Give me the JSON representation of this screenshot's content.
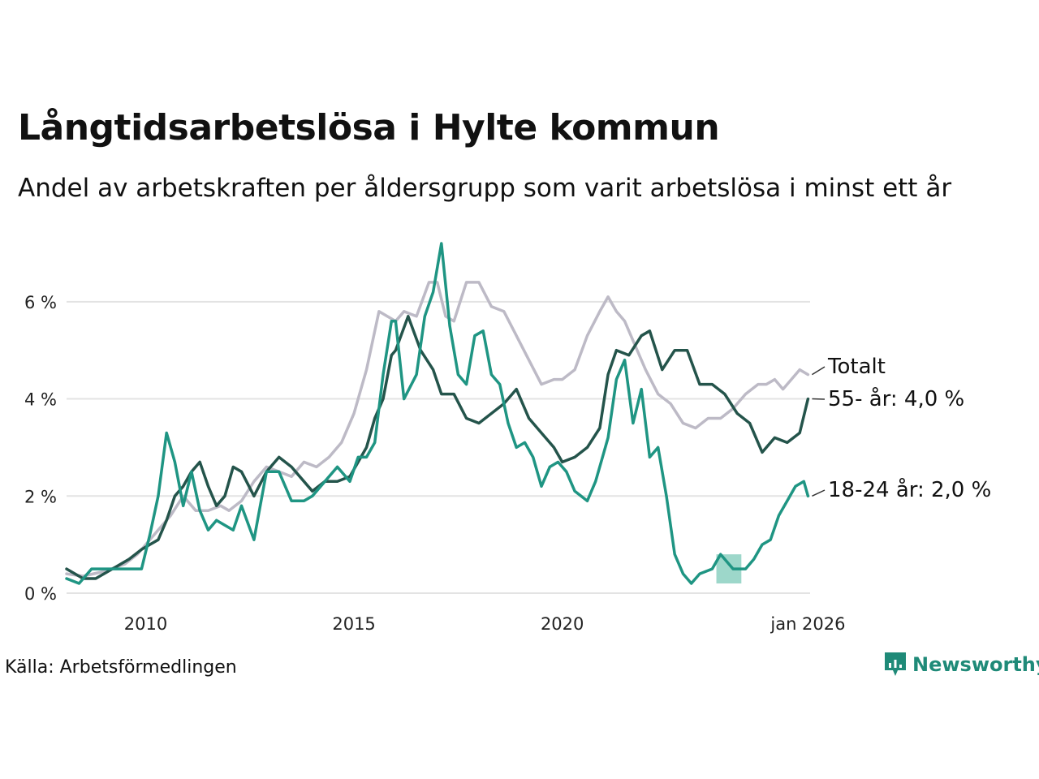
{
  "title": "Långtidsarbetslösa i Hylte kommun",
  "subtitle": "Andel av arbetskraften per åldersgrupp som varit arbetslösa i minst ett år",
  "source": "Källa: Arbetsförmedlingen",
  "brand": {
    "name": "Newsworthy",
    "icon": "newsworthy-logo-icon",
    "color": "#1f8a78"
  },
  "chart_data": {
    "type": "line",
    "title": "Långtidsarbetslösa i Hylte kommun",
    "xlabel": "",
    "ylabel": "",
    "xlim": [
      2008.1,
      2025.95
    ],
    "ylim": [
      0,
      7.2
    ],
    "yticks": [
      0,
      2,
      4,
      6
    ],
    "ytick_labels": [
      "0 %",
      "2 %",
      "4 %",
      "6 %"
    ],
    "xticks": [
      2010,
      2015,
      2020,
      2025.9
    ],
    "xtick_labels": [
      "2010",
      "2015",
      "2020",
      "jan 2026"
    ],
    "grid": "horizontal",
    "series": [
      {
        "name": "Totalt",
        "label": "Totalt",
        "color": "#bdbac6",
        "x": [
          2008.1,
          2008.5,
          2009.0,
          2009.5,
          2009.8,
          2010.0,
          2010.3,
          2010.6,
          2010.9,
          2011.2,
          2011.5,
          2011.8,
          2012.0,
          2012.3,
          2012.6,
          2012.9,
          2013.2,
          2013.5,
          2013.8,
          2014.1,
          2014.4,
          2014.7,
          2015.0,
          2015.3,
          2015.6,
          2015.8,
          2016.0,
          2016.2,
          2016.5,
          2016.8,
          2017.0,
          2017.2,
          2017.4,
          2017.7,
          2018.0,
          2018.3,
          2018.6,
          2018.9,
          2019.2,
          2019.5,
          2019.8,
          2020.0,
          2020.3,
          2020.6,
          2020.9,
          2021.1,
          2021.3,
          2021.5,
          2021.8,
          2022.0,
          2022.3,
          2022.6,
          2022.9,
          2023.2,
          2023.5,
          2023.8,
          2024.1,
          2024.4,
          2024.7,
          2024.9,
          2025.1,
          2025.3,
          2025.5,
          2025.7,
          2025.9
        ],
        "values": [
          0.4,
          0.35,
          0.45,
          0.6,
          0.8,
          1.0,
          1.3,
          1.6,
          2.0,
          1.7,
          1.7,
          1.8,
          1.7,
          1.9,
          2.3,
          2.6,
          2.5,
          2.4,
          2.7,
          2.6,
          2.8,
          3.1,
          3.7,
          4.6,
          5.8,
          5.7,
          5.6,
          5.8,
          5.7,
          6.4,
          6.4,
          5.7,
          5.6,
          6.4,
          6.4,
          5.9,
          5.8,
          5.3,
          4.8,
          4.3,
          4.4,
          4.4,
          4.6,
          5.3,
          5.8,
          6.1,
          5.8,
          5.6,
          5.0,
          4.6,
          4.1,
          3.9,
          3.5,
          3.4,
          3.6,
          3.6,
          3.8,
          4.1,
          4.3,
          4.3,
          4.4,
          4.2,
          4.4,
          4.6,
          4.5
        ]
      },
      {
        "name": "55- år",
        "label": "55- år: 4,0 %",
        "color": "#24544b",
        "x": [
          2008.1,
          2008.5,
          2008.8,
          2009.2,
          2009.6,
          2009.9,
          2010.1,
          2010.3,
          2010.5,
          2010.7,
          2010.9,
          2011.1,
          2011.3,
          2011.5,
          2011.7,
          2011.9,
          2012.1,
          2012.3,
          2012.6,
          2012.9,
          2013.2,
          2013.5,
          2013.8,
          2014.0,
          2014.3,
          2014.6,
          2014.9,
          2015.1,
          2015.3,
          2015.5,
          2015.7,
          2015.9,
          2016.0,
          2016.3,
          2016.6,
          2016.9,
          2017.1,
          2017.4,
          2017.7,
          2018.0,
          2018.3,
          2018.6,
          2018.9,
          2019.2,
          2019.5,
          2019.8,
          2020.0,
          2020.3,
          2020.6,
          2020.9,
          2021.1,
          2021.3,
          2021.6,
          2021.9,
          2022.1,
          2022.4,
          2022.7,
          2023.0,
          2023.3,
          2023.6,
          2023.9,
          2024.2,
          2024.5,
          2024.8,
          2025.1,
          2025.4,
          2025.7,
          2025.9
        ],
        "values": [
          0.5,
          0.3,
          0.3,
          0.5,
          0.7,
          0.9,
          1.0,
          1.1,
          1.5,
          2.0,
          2.2,
          2.5,
          2.7,
          2.2,
          1.8,
          2.0,
          2.6,
          2.5,
          2.0,
          2.5,
          2.8,
          2.6,
          2.3,
          2.1,
          2.3,
          2.3,
          2.4,
          2.7,
          3.0,
          3.6,
          4.0,
          4.9,
          5.0,
          5.7,
          5.0,
          4.6,
          4.1,
          4.1,
          3.6,
          3.5,
          3.7,
          3.9,
          4.2,
          3.6,
          3.3,
          3.0,
          2.7,
          2.8,
          3.0,
          3.4,
          4.5,
          5.0,
          4.9,
          5.3,
          5.4,
          4.6,
          5.0,
          5.0,
          4.3,
          4.3,
          4.1,
          3.7,
          3.5,
          2.9,
          3.2,
          3.1,
          3.3,
          4.0
        ]
      },
      {
        "name": "18-24 år",
        "label": "18-24 år: 2,0 %",
        "color": "#1f9583",
        "x": [
          2008.1,
          2008.4,
          2008.7,
          2009.0,
          2009.3,
          2009.6,
          2009.9,
          2010.1,
          2010.3,
          2010.5,
          2010.7,
          2010.9,
          2011.1,
          2011.3,
          2011.5,
          2011.7,
          2011.9,
          2012.1,
          2012.3,
          2012.6,
          2012.9,
          2013.2,
          2013.5,
          2013.8,
          2014.0,
          2014.3,
          2014.6,
          2014.9,
          2015.1,
          2015.3,
          2015.5,
          2015.7,
          2015.9,
          2016.0,
          2016.2,
          2016.5,
          2016.7,
          2016.9,
          2017.1,
          2017.3,
          2017.5,
          2017.7,
          2017.9,
          2018.1,
          2018.3,
          2018.5,
          2018.7,
          2018.9,
          2019.1,
          2019.3,
          2019.5,
          2019.7,
          2019.9,
          2020.1,
          2020.3,
          2020.6,
          2020.8,
          2021.0,
          2021.1,
          2021.3,
          2021.5,
          2021.7,
          2021.9,
          2022.1,
          2022.3,
          2022.5,
          2022.7,
          2022.9,
          2023.1,
          2023.3,
          2023.6,
          2023.8,
          2024.1,
          2024.4,
          2024.6,
          2024.8,
          2025.0,
          2025.2,
          2025.4,
          2025.6,
          2025.8,
          2025.9
        ],
        "values": [
          0.3,
          0.2,
          0.5,
          0.5,
          0.5,
          0.5,
          0.5,
          1.2,
          2.0,
          3.3,
          2.7,
          1.8,
          2.5,
          1.7,
          1.3,
          1.5,
          1.4,
          1.3,
          1.8,
          1.1,
          2.5,
          2.5,
          1.9,
          1.9,
          2.0,
          2.3,
          2.6,
          2.3,
          2.8,
          2.8,
          3.1,
          4.5,
          5.6,
          5.6,
          4.0,
          4.5,
          5.7,
          6.2,
          7.2,
          5.5,
          4.5,
          4.3,
          5.3,
          5.4,
          4.5,
          4.3,
          3.5,
          3.0,
          3.1,
          2.8,
          2.2,
          2.6,
          2.7,
          2.5,
          2.1,
          1.9,
          2.3,
          2.9,
          3.2,
          4.4,
          4.8,
          3.5,
          4.2,
          2.8,
          3.0,
          2.0,
          0.8,
          0.4,
          0.2,
          0.4,
          0.5,
          0.8,
          0.5,
          0.5,
          0.7,
          1.0,
          1.1,
          1.6,
          1.9,
          2.2,
          2.3,
          2.0
        ]
      }
    ],
    "interval": {
      "series": "18-24 år",
      "x": [
        2023.7,
        2024.3
      ],
      "range": [
        0.2,
        0.8
      ],
      "color": "#7cc9b8"
    }
  }
}
